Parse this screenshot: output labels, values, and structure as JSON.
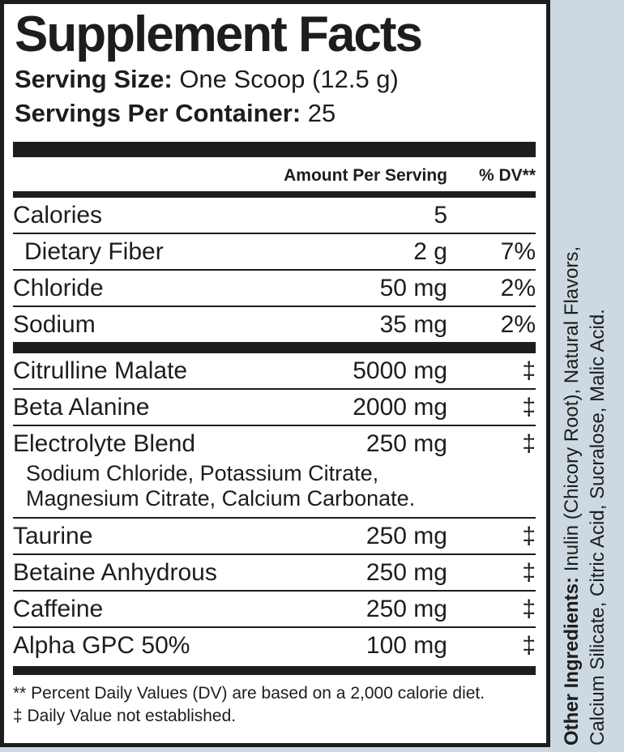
{
  "colors": {
    "page_background": "#cdd9e2",
    "ink": "#1d1d1b",
    "panel_background": "#ffffff"
  },
  "panel": {
    "title": "Supplement Facts",
    "serving_size": {
      "label": "Serving Size:",
      "value": "One Scoop (12.5 g)"
    },
    "servings_per_container": {
      "label": "Servings Per Container:",
      "value": "25"
    }
  },
  "table": {
    "header": {
      "amount": "Amount Per Serving",
      "dv": "% DV**"
    },
    "nutrients": [
      {
        "name": "Calories",
        "amount": "5",
        "dv": ""
      },
      {
        "name": "Dietary Fiber",
        "amount": "2 g",
        "dv": "7%"
      },
      {
        "name": "Chloride",
        "amount": "50 mg",
        "dv": "2%"
      },
      {
        "name": "Sodium",
        "amount": "35 mg",
        "dv": "2%"
      }
    ],
    "ingredients": [
      {
        "name": "Citrulline Malate",
        "amount": "5000 mg",
        "dv": "‡"
      },
      {
        "name": "Beta Alanine",
        "amount": "2000 mg",
        "dv": "‡"
      },
      {
        "name": "Electrolyte Blend",
        "amount": "250 mg",
        "dv": "‡",
        "sub_lines": [
          "Sodium Chloride, Potassium Citrate,",
          "Magnesium Citrate, Calcium Carbonate."
        ]
      },
      {
        "name": "Taurine",
        "amount": "250 mg",
        "dv": "‡"
      },
      {
        "name": "Betaine Anhydrous",
        "amount": "250 mg",
        "dv": "‡"
      },
      {
        "name": "Caffeine",
        "amount": "250 mg",
        "dv": "‡"
      },
      {
        "name": "Alpha GPC 50%",
        "amount": "100 mg",
        "dv": "‡"
      }
    ]
  },
  "footnotes": {
    "percent_dv": "** Percent Daily Values (DV) are based on a 2,000 calorie diet.",
    "dagger": "‡ Daily Value not established."
  },
  "other_ingredients": {
    "label": "Other Ingredients:",
    "line1_rest": " Inulin (Chicory Root), Natural Flavors,",
    "line2": "Calcium Silicate, Citric Acid, Sucralose, Malic Acid."
  }
}
